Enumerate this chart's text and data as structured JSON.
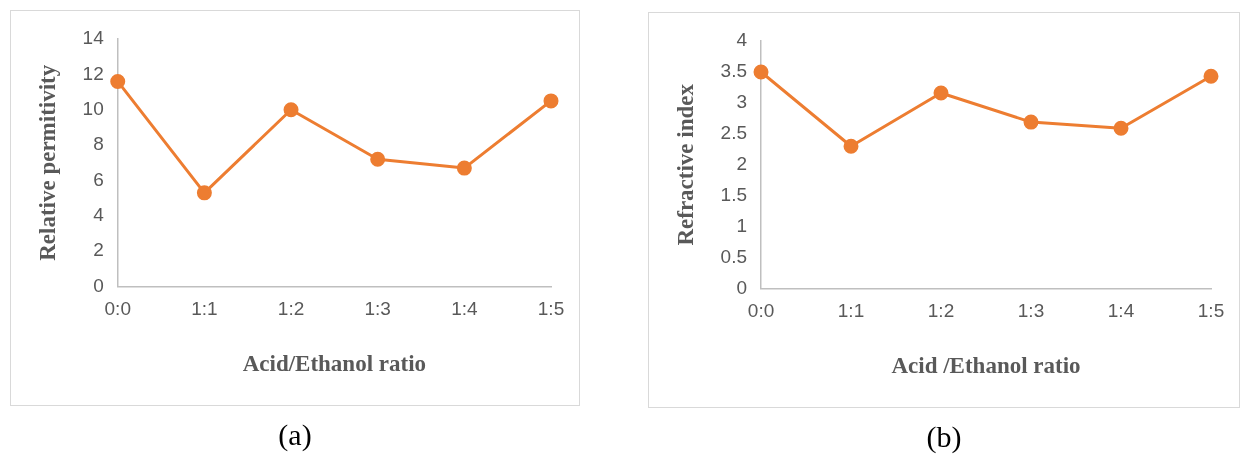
{
  "chart_data": [
    {
      "type": "line",
      "categories": [
        "0:0",
        "1:1",
        "1:2",
        "1:3",
        "1:4",
        "1:5"
      ],
      "xlabel": "Acid/Ethanol ratio",
      "ylabel": "Relative permitivity",
      "series": [
        {
          "color": "#ed7d31",
          "values": [
            11.6,
            5.3,
            10.0,
            7.2,
            6.7,
            10.5
          ]
        }
      ],
      "ylim": [
        0,
        14
      ],
      "yticks": [
        0,
        2,
        4,
        6,
        8,
        10,
        12,
        14
      ],
      "marker": "circle",
      "line_style": "solid",
      "grid": false,
      "legend": false,
      "annotations": [
        "(a)"
      ]
    },
    {
      "type": "line",
      "categories": [
        "0:0",
        "1:1",
        "1:2",
        "1:3",
        "1:4",
        "1:5"
      ],
      "xlabel": "Acid /Ethanol ratio",
      "ylabel": "Refractive index",
      "series": [
        {
          "color": "#ed7d31",
          "values": [
            3.5,
            2.3,
            3.16,
            2.69,
            2.59,
            3.43
          ]
        }
      ],
      "ylim": [
        0,
        4
      ],
      "yticks": [
        0,
        0.5,
        1,
        1.5,
        2,
        2.5,
        3,
        3.5,
        4
      ],
      "marker": "circle",
      "line_style": "solid",
      "grid": false,
      "legend": false,
      "annotations": [
        "(b)"
      ]
    }
  ]
}
